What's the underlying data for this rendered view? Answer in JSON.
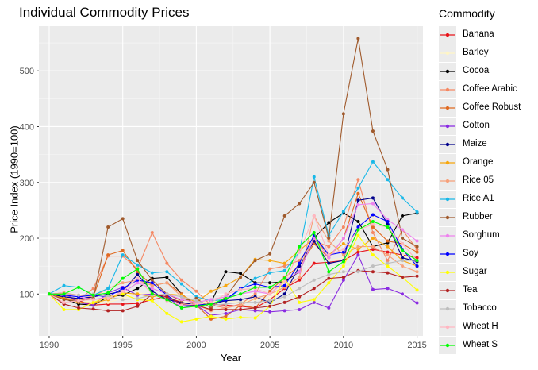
{
  "chart_data": {
    "type": "line",
    "title": "Individual Commodity Prices",
    "xlabel": "Year",
    "ylabel": "Price Index (1990=100)",
    "legend_title": "Commodity",
    "legend_position": "right",
    "grid": true,
    "xlim": [
      1989.3,
      2015.4
    ],
    "ylim": [
      25,
      580
    ],
    "x_ticks": [
      1990,
      1995,
      2000,
      2005,
      2010,
      2015
    ],
    "y_ticks": [
      100,
      200,
      300,
      400,
      500
    ],
    "x": [
      1990,
      1991,
      1992,
      1993,
      1994,
      1995,
      1996,
      1997,
      1998,
      1999,
      2000,
      2001,
      2002,
      2003,
      2004,
      2005,
      2006,
      2007,
      2008,
      2009,
      2010,
      2011,
      2012,
      2013,
      2014,
      2015
    ],
    "series": [
      {
        "name": "Banana",
        "color": "#e8141a",
        "values": [
          100,
          95,
          88,
          80,
          82,
          82,
          83,
          90,
          95,
          85,
          80,
          82,
          80,
          78,
          75,
          90,
          110,
          125,
          155,
          157,
          160,
          175,
          180,
          175,
          170,
          165
        ]
      },
      {
        "name": "Barley",
        "color": "#fff5c5",
        "values": [
          100,
          94,
          90,
          85,
          85,
          92,
          102,
          100,
          94,
          88,
          85,
          86,
          88,
          85,
          90,
          92,
          120,
          160,
          190,
          160,
          165,
          210,
          240,
          220,
          170,
          150
        ]
      },
      {
        "name": "Cocoa",
        "color": "#000000",
        "values": [
          100,
          92,
          82,
          80,
          95,
          98,
          110,
          128,
          130,
          100,
          78,
          85,
          140,
          137,
          120,
          120,
          122,
          140,
          200,
          228,
          245,
          230,
          185,
          192,
          240,
          245
        ]
      },
      {
        "name": "Coffee Arabic",
        "color": "#f58863",
        "values": [
          100,
          98,
          90,
          110,
          168,
          168,
          145,
          210,
          155,
          125,
          105,
          80,
          75,
          82,
          100,
          145,
          150,
          160,
          195,
          185,
          220,
          305,
          210,
          160,
          215,
          180
        ]
      },
      {
        "name": "Coffee Robust",
        "color": "#e06a21",
        "values": [
          100,
          93,
          88,
          95,
          170,
          178,
          140,
          115,
          120,
          100,
          80,
          55,
          60,
          80,
          75,
          105,
          130,
          150,
          190,
          165,
          200,
          280,
          220,
          195,
          190,
          175
        ]
      },
      {
        "name": "Cotton",
        "color": "#8a2be2",
        "values": [
          100,
          102,
          85,
          80,
          102,
          112,
          98,
          100,
          95,
          75,
          80,
          62,
          65,
          72,
          70,
          68,
          70,
          72,
          85,
          75,
          125,
          170,
          108,
          110,
          100,
          84
        ]
      },
      {
        "name": "Maize",
        "color": "#00008b",
        "values": [
          100,
          95,
          92,
          95,
          100,
          105,
          135,
          105,
          90,
          85,
          80,
          82,
          88,
          90,
          95,
          85,
          100,
          150,
          195,
          155,
          160,
          268,
          272,
          225,
          165,
          158
        ]
      },
      {
        "name": "Orange",
        "color": "#f7a70e",
        "values": [
          100,
          92,
          85,
          84,
          90,
          102,
          100,
          95,
          100,
          98,
          85,
          105,
          115,
          130,
          162,
          160,
          155,
          178,
          200,
          170,
          190,
          180,
          200,
          185,
          160,
          150
        ]
      },
      {
        "name": "Rice 05",
        "color": "#f7a07a",
        "values": [
          100,
          102,
          98,
          95,
          110,
          120,
          125,
          115,
          120,
          95,
          80,
          70,
          75,
          80,
          92,
          100,
          112,
          130,
          240,
          195,
          170,
          185,
          185,
          170,
          150,
          140
        ]
      },
      {
        "name": "Rice A1",
        "color": "#18b8e8",
        "values": [
          100,
          115,
          112,
          98,
          110,
          170,
          152,
          138,
          140,
          118,
          95,
          88,
          90,
          108,
          128,
          138,
          142,
          175,
          310,
          205,
          248,
          290,
          337,
          305,
          272,
          247
        ]
      },
      {
        "name": "Rubber",
        "color": "#a05a2c",
        "values": [
          100,
          90,
          87,
          92,
          220,
          235,
          160,
          125,
          100,
          88,
          92,
          75,
          95,
          130,
          160,
          172,
          240,
          262,
          300,
          200,
          423,
          558,
          392,
          323,
          200,
          185
        ]
      },
      {
        "name": "Sorghum",
        "color": "#ee82ee",
        "values": [
          100,
          98,
          95,
          90,
          95,
          102,
          120,
          110,
          100,
          90,
          85,
          90,
          95,
          100,
          105,
          100,
          125,
          140,
          200,
          165,
          200,
          260,
          262,
          233,
          215,
          195
        ]
      },
      {
        "name": "Soy",
        "color": "#0000ff",
        "values": [
          100,
          98,
          95,
          98,
          95,
          110,
          125,
          120,
          98,
          80,
          80,
          82,
          90,
          110,
          118,
          112,
          115,
          155,
          205,
          170,
          175,
          220,
          242,
          230,
          180,
          150
        ]
      },
      {
        "name": "Sugar",
        "color": "#ffff00",
        "values": [
          100,
          72,
          72,
          85,
          95,
          100,
          90,
          88,
          65,
          50,
          55,
          60,
          55,
          58,
          57,
          78,
          128,
          85,
          90,
          120,
          150,
          205,
          170,
          150,
          130,
          107
        ]
      },
      {
        "name": "Tea",
        "color": "#b22222",
        "values": [
          100,
          82,
          75,
          73,
          70,
          70,
          78,
          100,
          95,
          82,
          80,
          72,
          72,
          72,
          75,
          78,
          85,
          95,
          110,
          128,
          130,
          142,
          140,
          138,
          130,
          132
        ]
      },
      {
        "name": "Tobacco",
        "color": "#bebebe",
        "values": [
          100,
          100,
          98,
          100,
          95,
          90,
          92,
          98,
          100,
          95,
          88,
          80,
          82,
          85,
          85,
          88,
          95,
          110,
          125,
          135,
          140,
          140,
          150,
          155,
          160,
          160
        ]
      },
      {
        "name": "Wheat H",
        "color": "#ffb6c1",
        "values": [
          100,
          85,
          88,
          90,
          92,
          105,
          128,
          100,
          88,
          80,
          82,
          85,
          100,
          108,
          110,
          100,
          122,
          175,
          240,
          170,
          180,
          215,
          225,
          220,
          190,
          160
        ]
      },
      {
        "name": "Wheat S",
        "color": "#00ff00",
        "values": [
          100,
          100,
          112,
          98,
          102,
          128,
          145,
          100,
          90,
          75,
          78,
          82,
          92,
          100,
          112,
          112,
          128,
          185,
          210,
          140,
          158,
          215,
          230,
          220,
          178,
          160
        ]
      }
    ]
  }
}
